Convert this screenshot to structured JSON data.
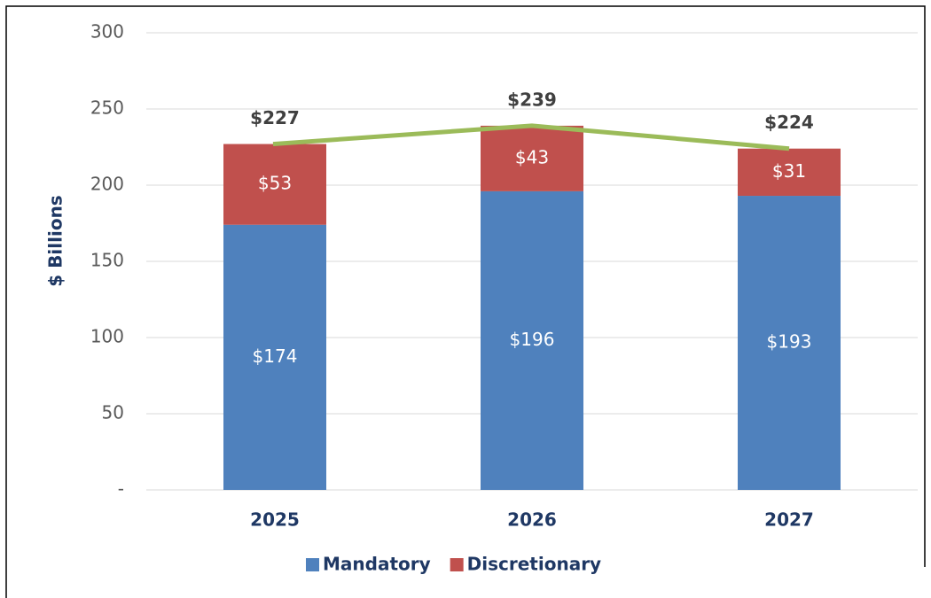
{
  "chart_data": {
    "type": "stacked_bar",
    "y_label": "$ Billions",
    "categories": [
      "2025",
      "2026",
      "2027"
    ],
    "series": [
      {
        "name": "Mandatory",
        "color": "#4f81bd",
        "values": [
          174,
          196,
          193
        ],
        "value_labels": [
          "$174",
          "$196",
          "$193"
        ]
      },
      {
        "name": "Discretionary",
        "color": "#c0504d",
        "values": [
          53,
          43,
          31
        ],
        "value_labels": [
          "$53",
          "$43",
          "$31"
        ]
      }
    ],
    "totals": {
      "color": "#9bbb59",
      "values": [
        227,
        239,
        224
      ],
      "value_labels": [
        "$227",
        "$239",
        "$224"
      ]
    },
    "ylim": [
      0,
      300
    ],
    "yticks": [
      {
        "value": 0,
        "label": "-"
      },
      50,
      100,
      150,
      200,
      250,
      300
    ],
    "grid": true,
    "legend": "bottom"
  }
}
